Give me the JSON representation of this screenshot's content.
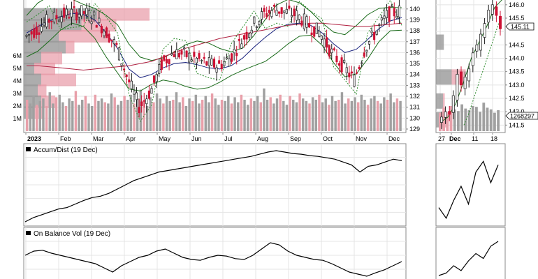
{
  "chart_data": [
    {
      "type": "line",
      "panel": "main-price",
      "title": "",
      "y_axis": {
        "side": "right",
        "min": 129,
        "max": 140.5,
        "ticks": [
          129,
          130,
          131,
          132,
          133,
          134,
          135,
          136,
          137,
          138,
          139,
          140
        ]
      },
      "volume_axis": {
        "side": "left",
        "ticks": [
          "1M",
          "2M",
          "3M",
          "4M",
          "5M",
          "6M"
        ]
      },
      "x_labels": [
        "2023",
        "Feb",
        "Mar",
        "Apr",
        "May",
        "Jun",
        "Jul",
        "Aug",
        "Sep",
        "Oct",
        "Nov",
        "Dec"
      ],
      "series": [
        {
          "values": [
            137.5,
            138.2,
            139.0,
            139.4,
            139.6,
            139.7,
            139.2,
            138.0,
            136.5,
            133.5,
            131.0,
            132.5,
            135.0,
            136.0,
            135.8,
            135.4,
            135.0,
            134.8,
            135.5,
            137.0,
            138.5,
            139.5,
            140.0,
            139.7,
            139.4,
            138.5,
            137.8,
            136.0,
            134.8,
            133.5,
            136.5,
            138.0,
            139.5,
            139.8
          ]
        },
        {
          "values": [
            137.8,
            138.4,
            138.9,
            139.3,
            139.6,
            139.5,
            139.0,
            137.8,
            136.4,
            134.5,
            133.7,
            134.0,
            134.6,
            135.0,
            135.1,
            134.9,
            134.6,
            134.5,
            134.8,
            135.5,
            136.5,
            137.4,
            138.2,
            138.6,
            138.7,
            138.5,
            137.8,
            136.8,
            136.0,
            136.3,
            137.2,
            138.2,
            138.9,
            139.2
          ]
        },
        {
          "values": [
            134.8,
            134.8,
            134.7,
            134.6,
            134.5,
            134.4,
            134.5,
            134.6,
            134.7,
            134.8,
            135.0,
            135.2,
            135.6,
            136.0,
            136.4,
            136.7,
            137.0,
            137.3,
            137.5,
            137.7,
            137.9,
            138.1,
            138.3,
            138.5,
            138.6,
            138.7,
            138.7,
            138.6,
            138.5,
            138.4,
            138.4,
            138.5,
            138.6,
            138.7
          ]
        }
      ],
      "volume_profile": [
        {
          "price": 139.5,
          "up": 0.42,
          "down": 0.3
        },
        {
          "price": 138.5,
          "up": 0.33,
          "down": 0.2
        },
        {
          "price": 137.5,
          "up": 0.2,
          "down": 0.28
        },
        {
          "price": 136.5,
          "up": 0.24,
          "down": 0.05
        },
        {
          "price": 135.5,
          "up": 0.1,
          "down": 0.12
        },
        {
          "price": 134.5,
          "up": 0.06,
          "down": 0.12
        },
        {
          "price": 133.5,
          "up": 0.1,
          "down": 0.2
        },
        {
          "price": 132.5,
          "up": 0.08,
          "down": 0.05
        },
        {
          "price": 131.5,
          "up": 0.1,
          "down": 0.08
        },
        {
          "price": 130.5,
          "up": 0.06,
          "down": 0.05
        }
      ],
      "volume_values": [
        2.5,
        2.2,
        2.8,
        2.1,
        2.4,
        2.6,
        2.0,
        3.1,
        2.2,
        2.7,
        2.9,
        2.3,
        2.0,
        2.6,
        2.4,
        3.2,
        2.1,
        2.5,
        2.8,
        2.2,
        2.0,
        2.9,
        2.4,
        2.6,
        2.3,
        2.2,
        3.0,
        2.7,
        2.1,
        2.4,
        2.8,
        2.5,
        2.9,
        2.2,
        2.6,
        3.3,
        2.4,
        2.0,
        2.7,
        2.3,
        3.0,
        2.6,
        2.2,
        2.8,
        2.4,
        2.5,
        3.1,
        2.3,
        2.7,
        2.0,
        2.6,
        2.4,
        2.9,
        2.2,
        2.5,
        2.8,
        2.3,
        3.0,
        2.6,
        2.1,
        2.5,
        2.4,
        2.8,
        2.2,
        2.7,
        2.3,
        2.9,
        2.5,
        2.1,
        2.6,
        2.4,
        2.8,
        2.3,
        3.4,
        2.5,
        2.7,
        2.2,
        2.6,
        2.9,
        2.4,
        2.1,
        2.8,
        2.5,
        2.3,
        3.0,
        2.6,
        2.4,
        2.2,
        2.7,
        2.5,
        2.9,
        2.3,
        2.6,
        2.1,
        2.8,
        2.4,
        2.5,
        3.1,
        2.2,
        2.6,
        2.4,
        2.7,
        2.3,
        2.9,
        2.5,
        2.1,
        2.6,
        2.8,
        2.4,
        2.2,
        2.7,
        2.5,
        3.0,
        2.3,
        2.6,
        2.4
      ]
    },
    {
      "type": "line",
      "panel": "accum-dist",
      "legend": "Accum/Dist (19 Dec)",
      "series": [
        {
          "values": [
            0,
            6,
            10,
            14,
            18,
            20,
            25,
            30,
            34,
            36,
            40,
            46,
            52,
            58,
            62,
            66,
            70,
            72,
            74,
            76,
            78,
            80,
            82,
            84,
            86,
            88,
            90,
            92,
            95,
            98,
            100,
            98,
            96,
            95,
            93,
            92,
            90,
            88,
            84,
            80,
            70,
            78,
            80,
            84,
            88,
            86
          ]
        }
      ]
    },
    {
      "type": "line",
      "panel": "on-balance-vol",
      "legend": "On Balance Vol (19 Dec)",
      "series": [
        {
          "values": [
            60,
            70,
            72,
            65,
            60,
            55,
            50,
            45,
            40,
            30,
            20,
            35,
            45,
            55,
            60,
            70,
            75,
            65,
            55,
            50,
            48,
            55,
            60,
            58,
            52,
            50,
            60,
            75,
            90,
            85,
            70,
            60,
            55,
            50,
            48,
            40,
            30,
            20,
            15,
            10,
            18,
            25,
            35,
            45
          ]
        }
      ]
    },
    {
      "type": "line",
      "panel": "right-price",
      "y_axis": {
        "side": "right",
        "min": 141.3,
        "max": 146.1,
        "ticks": [
          141.5,
          142.0,
          142.5,
          143.0,
          143.5,
          144.0,
          144.5,
          145.0,
          145.5,
          146.0
        ]
      },
      "x_labels": [
        "27",
        "Dec",
        "11",
        "18"
      ],
      "labels": {
        "last_price": "145.11",
        "volume_marker": "1268297"
      },
      "series": [
        {
          "values": [
            141.6,
            141.8,
            142.3,
            143.1,
            144.0,
            144.6,
            145.2,
            145.9,
            146.2
          ]
        },
        {
          "values": [
            141.5,
            141.9,
            142.4,
            142.9,
            143.4,
            143.9,
            144.4,
            144.9,
            145.4
          ]
        }
      ]
    },
    {
      "type": "line",
      "panel": "right-accum-dist",
      "series": [
        {
          "values": [
            20,
            5,
            30,
            50,
            25,
            70,
            85,
            55,
            80
          ]
        }
      ]
    },
    {
      "type": "line",
      "panel": "right-obv",
      "series": [
        {
          "values": [
            10,
            15,
            30,
            20,
            40,
            55,
            45,
            70,
            80
          ]
        }
      ]
    }
  ],
  "colors": {
    "up_candle": "#1a1a1a",
    "down_candle": "#cc1133",
    "bollinger": "#1a6b1a",
    "sma_blue": "#1a237e",
    "sma_red": "#b02040",
    "volume_gray": "#a0a0a0",
    "volume_red": "#e8a0aa",
    "profile_gray": "#999999",
    "profile_red": "#e89aa6",
    "grid": "#e4e4e4"
  }
}
